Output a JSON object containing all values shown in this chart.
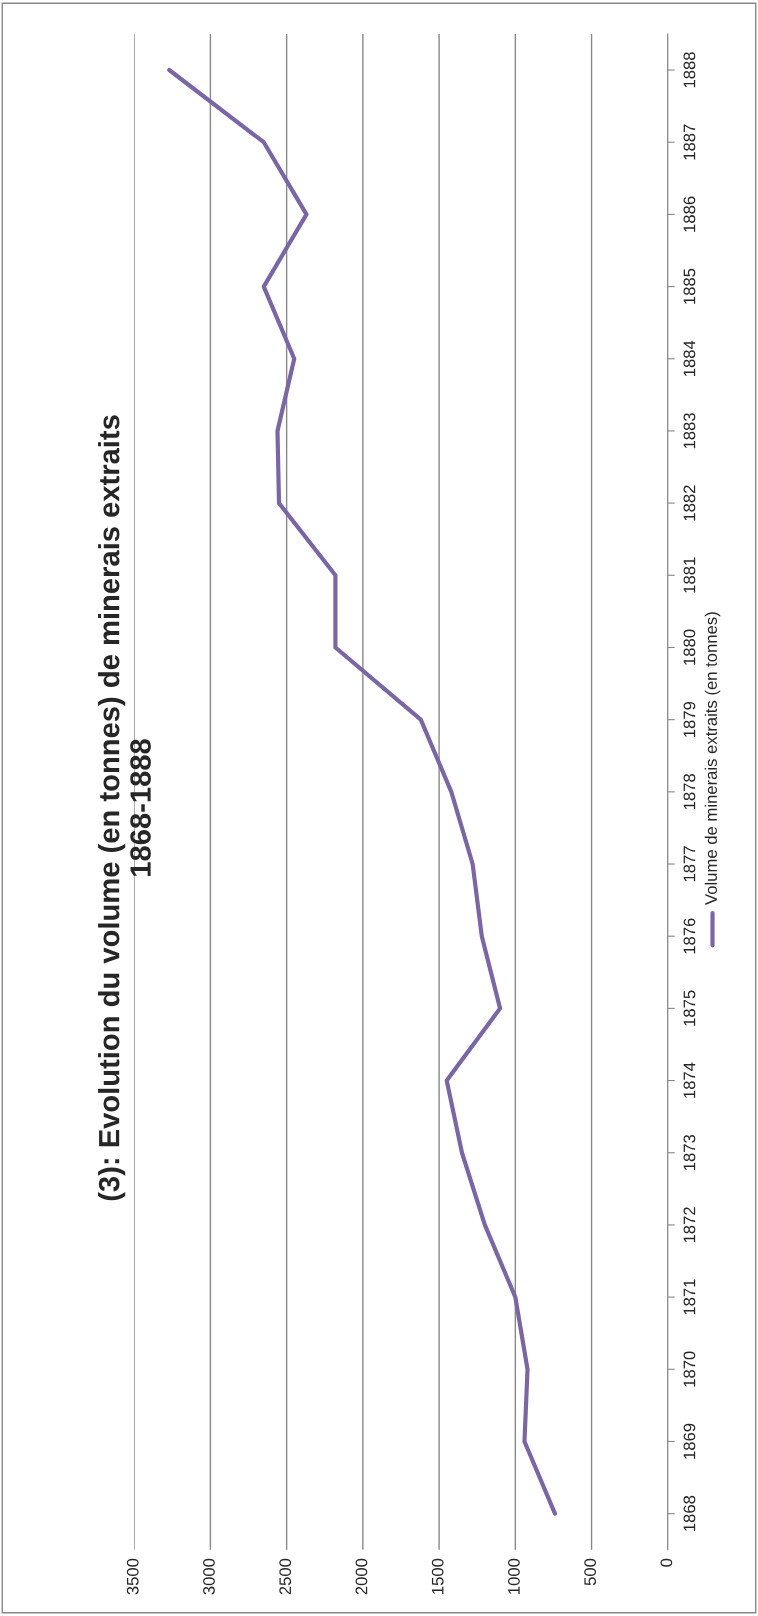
{
  "chart_data": {
    "type": "line",
    "orientation": "horizontal",
    "title": "(3): Evolution du volume (en tonnes) de minerais extraits\n1868-1888",
    "categories": [
      "1888",
      "1887",
      "1886",
      "1885",
      "1884",
      "1883",
      "1882",
      "1881",
      "1880",
      "1879",
      "1878",
      "1877",
      "1876",
      "1875",
      "1874",
      "1873",
      "1872",
      "1871",
      "1870",
      "1869",
      "1868"
    ],
    "series": [
      {
        "name": "Volume de minerais extraits (en tonnes)",
        "color": "#7a65a8",
        "values": [
          3270,
          2650,
          2370,
          2650,
          2450,
          2560,
          2550,
          2180,
          2180,
          1620,
          1420,
          1280,
          1220,
          1100,
          1450,
          1350,
          1200,
          1000,
          920,
          940,
          740
        ]
      }
    ],
    "xlim": [
      3500,
      0
    ],
    "xticks": [
      3500,
      3000,
      2500,
      2000,
      1500,
      1000,
      500,
      0
    ],
    "grid": "x",
    "legend": "right"
  }
}
